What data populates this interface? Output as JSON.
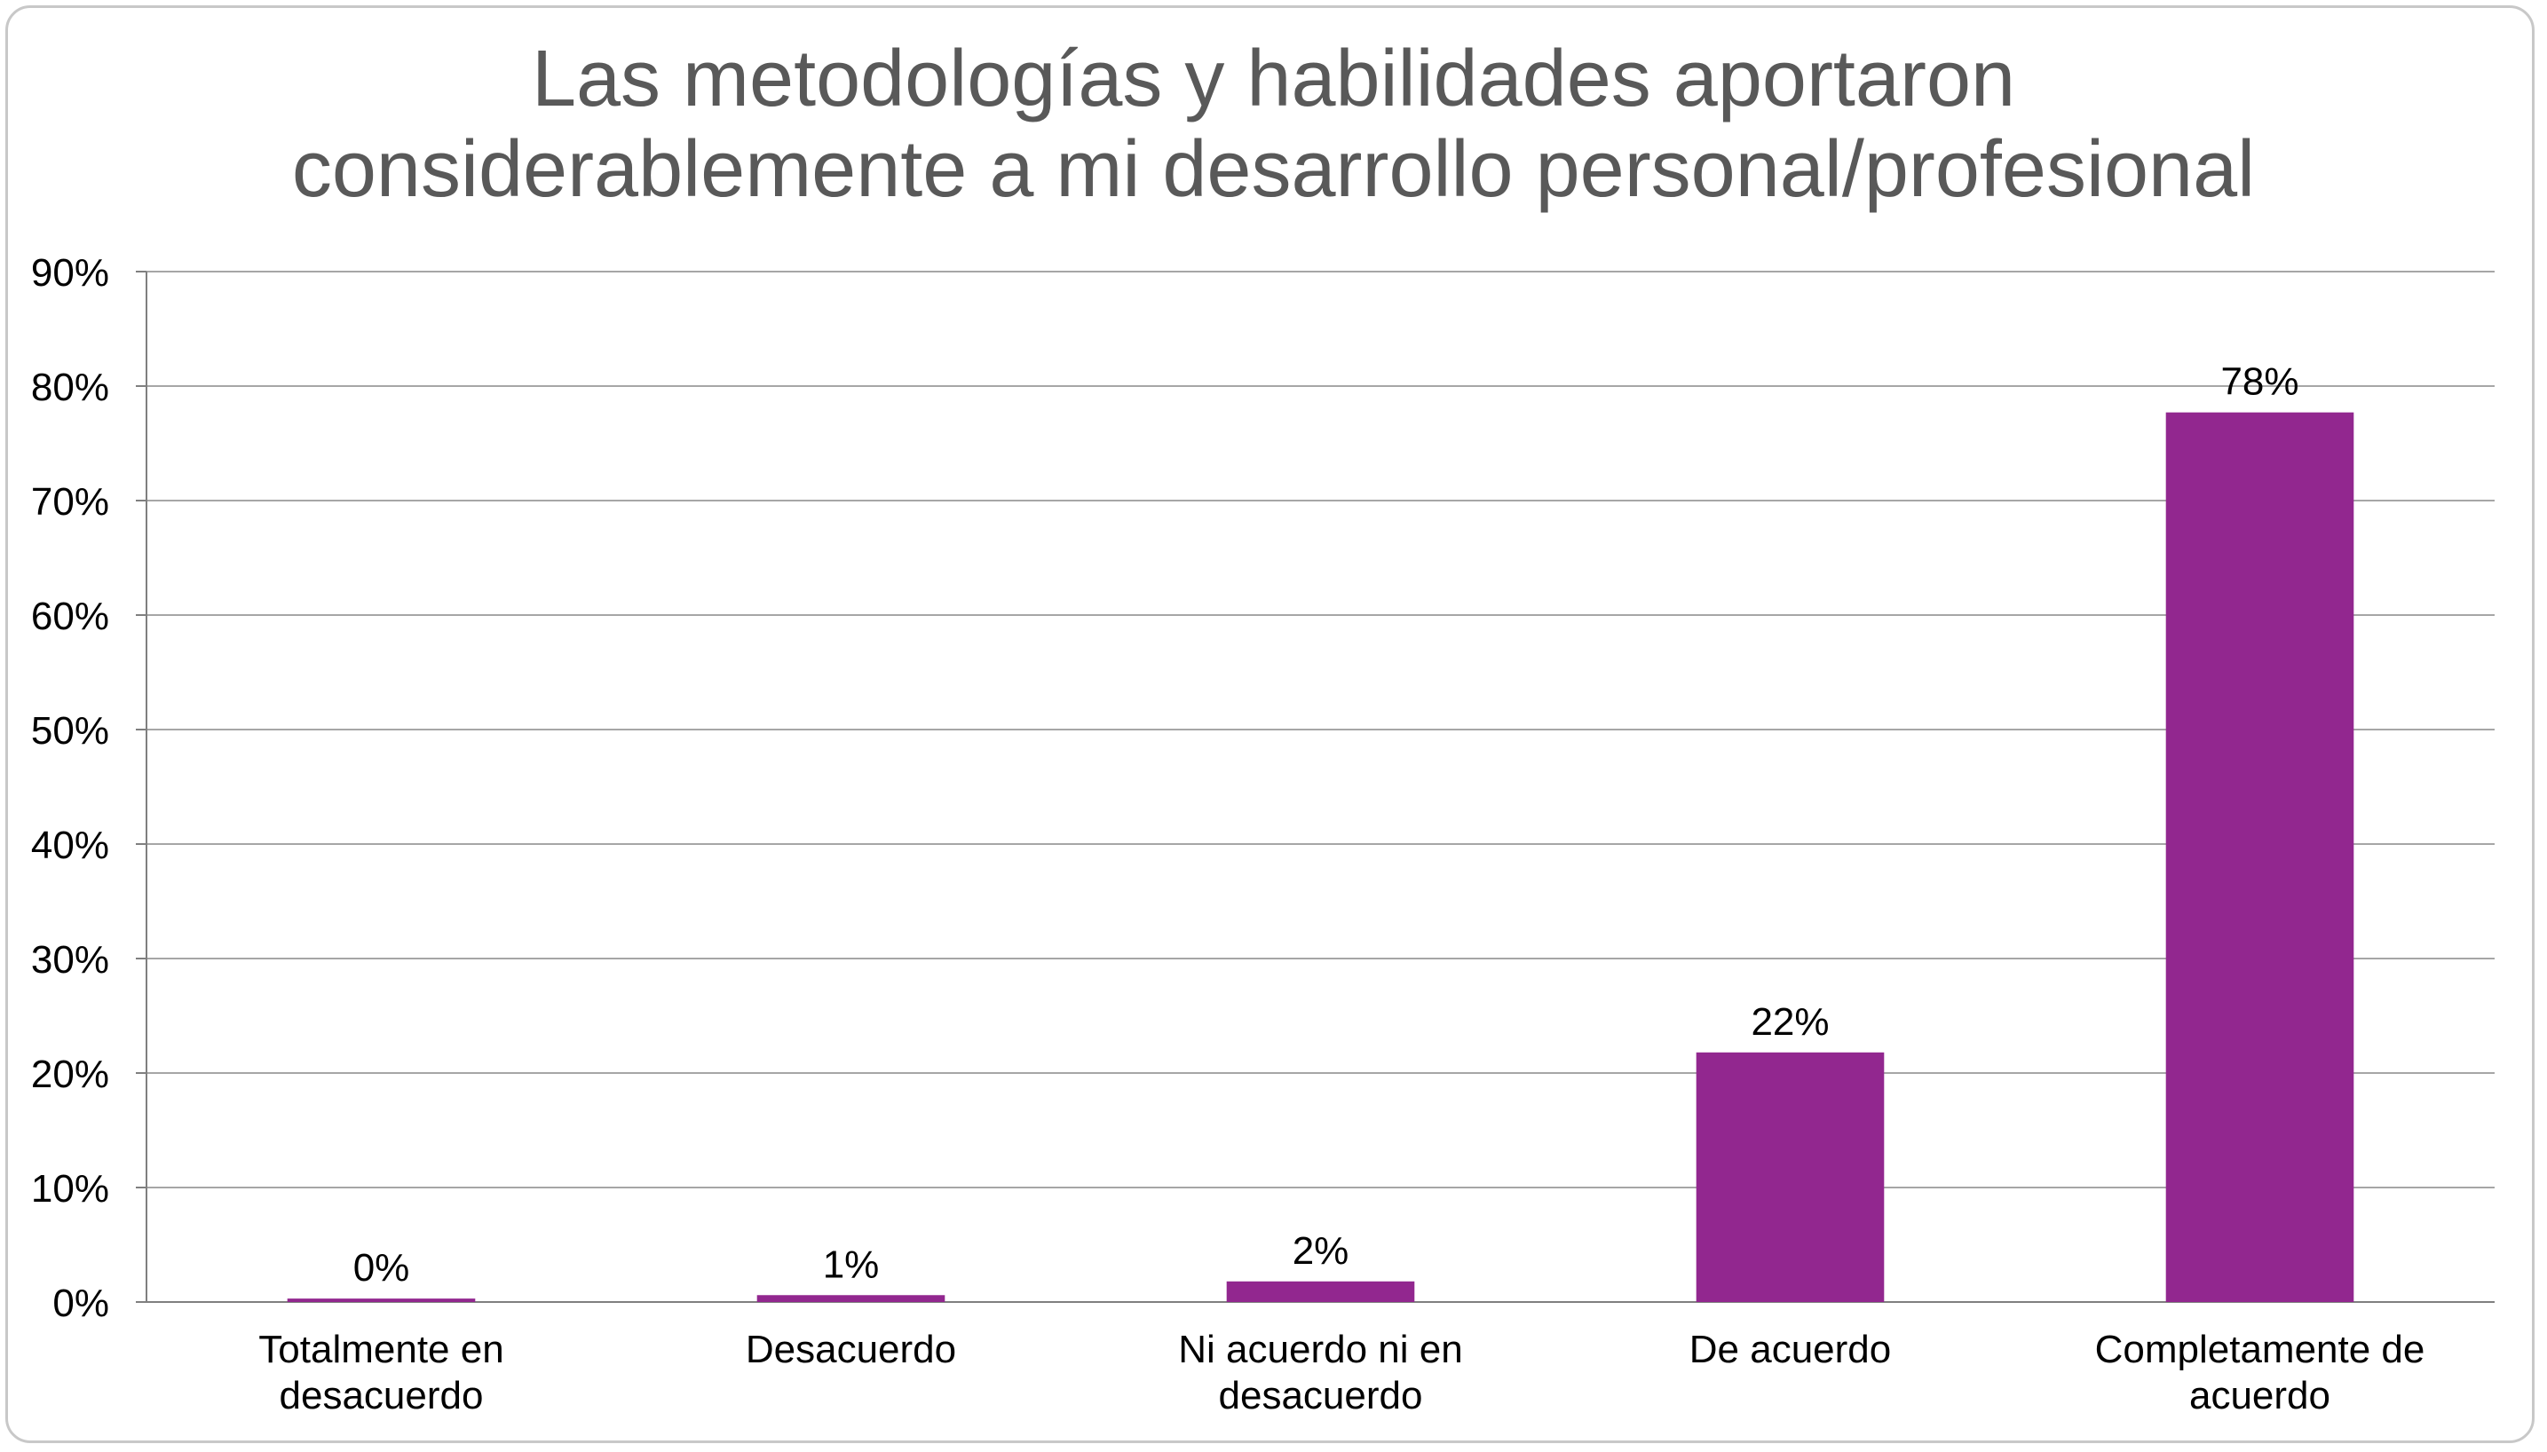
{
  "chart_data": {
    "type": "bar",
    "title_lines": [
      "Las metodologías y habilidades aportaron",
      "considerablemente a mi desarrollo personal/profesional"
    ],
    "categories": [
      [
        "Totalmente en",
        "desacuerdo"
      ],
      [
        "Desacuerdo"
      ],
      [
        "Ni acuerdo ni en",
        "desacuerdo"
      ],
      [
        "De acuerdo"
      ],
      [
        "Completamente de",
        "acuerdo"
      ]
    ],
    "values": [
      0.3,
      0.6,
      1.8,
      21.8,
      77.7
    ],
    "data_labels": [
      "0%",
      "1%",
      "2%",
      "22%",
      "78%"
    ],
    "ylim": [
      0,
      90
    ],
    "yticks": [
      "0%",
      "10%",
      "20%",
      "30%",
      "40%",
      "50%",
      "60%",
      "70%",
      "80%",
      "90%"
    ],
    "grid": true,
    "legend": "none",
    "bar_color": "#92278f",
    "grid_color": "#a6a6a6"
  }
}
